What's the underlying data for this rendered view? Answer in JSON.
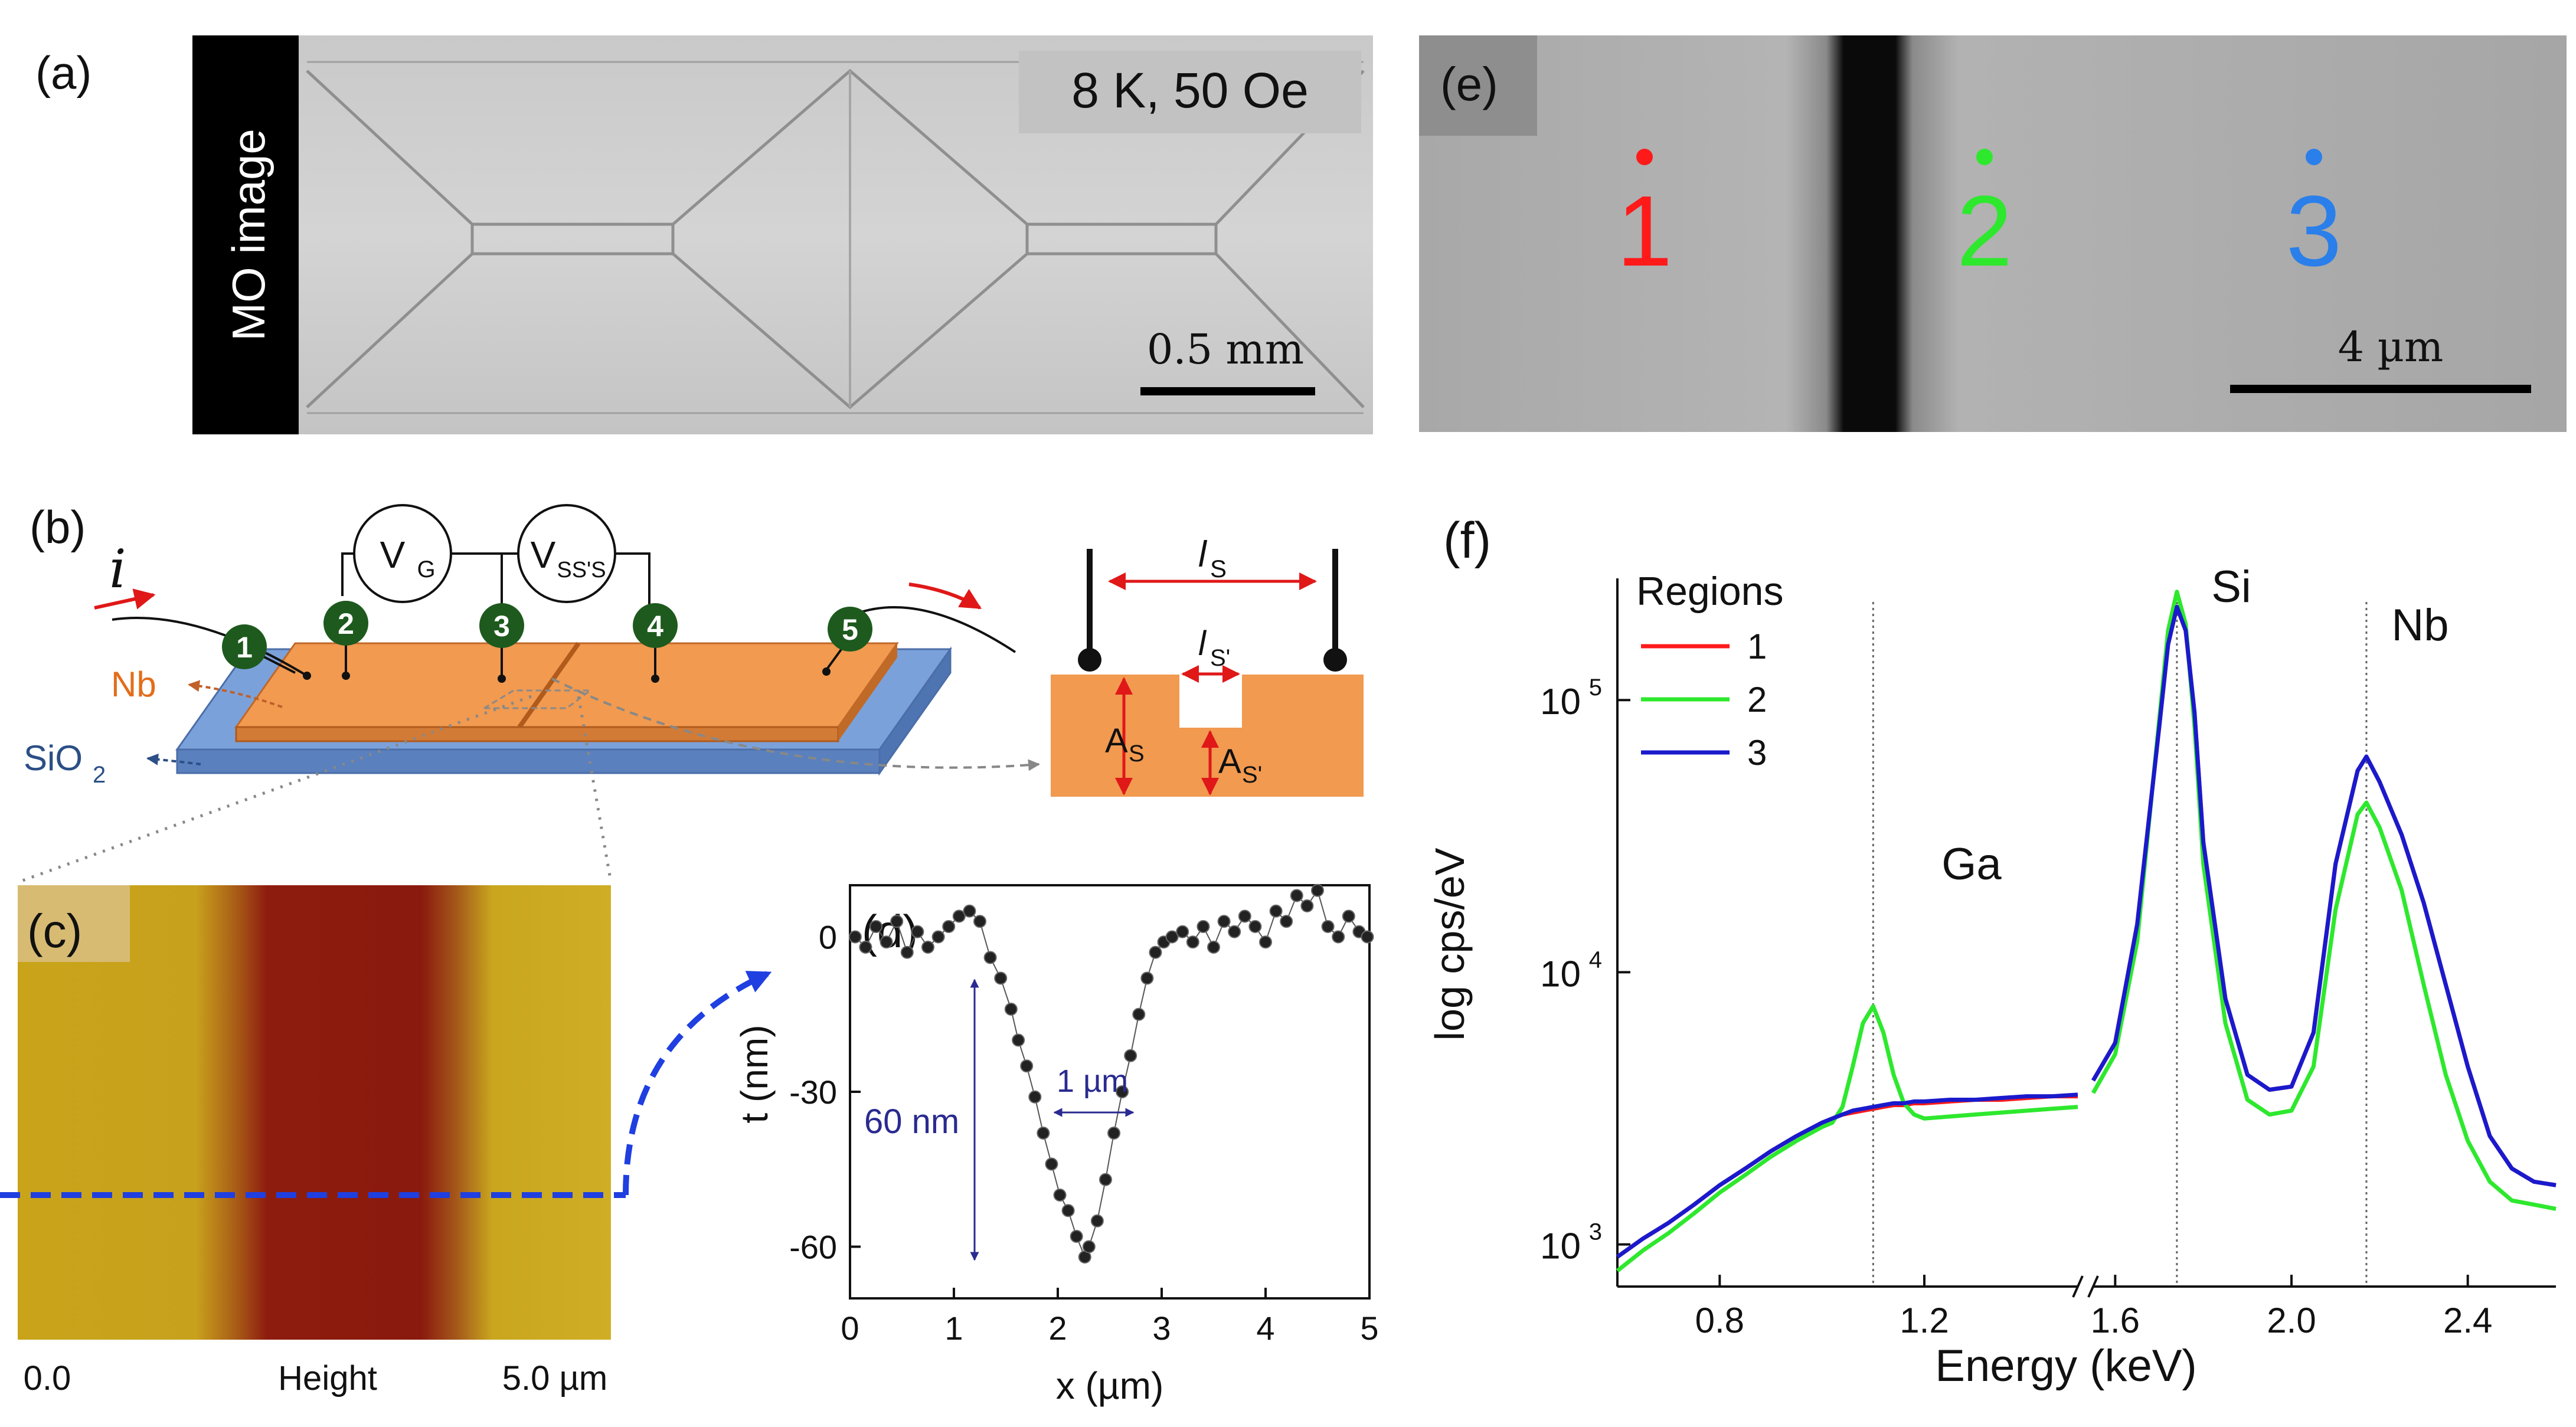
{
  "panels": {
    "a": {
      "label": "(a)",
      "side_label": "MO image",
      "condition": "8 K, 50 Oe",
      "scale_bar": "0.5 mm"
    },
    "b": {
      "label": "(b)",
      "current_symbol": "i",
      "voltmeters": [
        "V",
        "V"
      ],
      "voltmeter_subscripts": [
        "G",
        "SS'S"
      ],
      "contacts": [
        "1",
        "2",
        "3",
        "4",
        "5"
      ],
      "nb_label": "Nb",
      "sio2_label": "SiO",
      "sio2_subscript": "2",
      "ls_label": "l",
      "ls_subscript": "S",
      "ls_prime_label": "l",
      "ls_prime_subscript": "S'",
      "as_label": "A",
      "as_subscript": "S",
      "as_prime_label": "A",
      "as_prime_subscript": "S'"
    },
    "c": {
      "label": "(c)",
      "axis_min": "0.0",
      "axis_title": "Height",
      "axis_max": "5.0 µm"
    },
    "d": {
      "label": "(d)",
      "depth_annotation": "60 nm",
      "width_annotation": "1 µm"
    },
    "e": {
      "label": "(e)",
      "regions": [
        "1",
        "2",
        "3"
      ],
      "scale_bar": "4 µm"
    },
    "f": {
      "label": "(f)",
      "legend_title": "Regions",
      "legend_entries": [
        "1",
        "2",
        "3"
      ],
      "peak_labels": [
        "Ga",
        "Si",
        "Nb"
      ]
    }
  },
  "colors": {
    "region1": "#ff1a1a",
    "region2": "#2ee82e",
    "region3": "#1a1acc",
    "region3_marker": "#2a7fea",
    "nb_orange": "#f19a50",
    "substrate_blue": "#6e94cf",
    "contact_green": "#1e5a1e",
    "afm_yellow": "#c8a71e",
    "afm_red": "#8c1a0e",
    "dashed_blue": "#1f3fe0"
  },
  "chart_data": [
    {
      "id": "d",
      "type": "scatter",
      "title": "",
      "xlabel": "x (µm)",
      "ylabel": "t (nm)",
      "xlim": [
        0,
        5
      ],
      "ylim": [
        -70,
        10
      ],
      "xticks": [
        0,
        1,
        2,
        3,
        4,
        5
      ],
      "yticks": [
        0,
        -30,
        -60
      ],
      "series": [
        {
          "name": "profile",
          "x": [
            0.05,
            0.15,
            0.25,
            0.35,
            0.45,
            0.55,
            0.65,
            0.75,
            0.85,
            0.95,
            1.05,
            1.15,
            1.25,
            1.35,
            1.45,
            1.55,
            1.62,
            1.7,
            1.78,
            1.86,
            1.94,
            2.02,
            2.1,
            2.18,
            2.26,
            2.3,
            2.38,
            2.46,
            2.54,
            2.62,
            2.7,
            2.78,
            2.86,
            2.94,
            3.02,
            3.1,
            3.2,
            3.3,
            3.4,
            3.5,
            3.6,
            3.7,
            3.8,
            3.9,
            4.0,
            4.1,
            4.2,
            4.3,
            4.4,
            4.5,
            4.6,
            4.7,
            4.8,
            4.9,
            4.98
          ],
          "y": [
            0,
            -2,
            2,
            -1,
            3,
            -3,
            1,
            -2,
            0,
            2,
            4,
            5,
            3,
            -4,
            -8,
            -14,
            -20,
            -25,
            -31,
            -38,
            -44,
            -50,
            -53,
            -58,
            -62,
            -60,
            -55,
            -47,
            -38,
            -30,
            -23,
            -15,
            -8,
            -3,
            -1,
            0,
            1,
            -1,
            2,
            -2,
            3,
            1,
            4,
            2,
            -1,
            5,
            3,
            8,
            6,
            9,
            2,
            0,
            4,
            1,
            0
          ]
        }
      ]
    },
    {
      "id": "f",
      "type": "line",
      "title": "",
      "xlabel": "Energy (keV)",
      "ylabel": "log cps/eV",
      "yscale": "log",
      "ylim": [
        700,
        280000
      ],
      "broken_axis": true,
      "xticks": [
        0.8,
        1.2,
        1.6,
        2.0,
        2.4
      ],
      "ytick_labels": [
        "10^3",
        "10^4",
        "10^5"
      ],
      "segments": [
        {
          "xlim": [
            0.6,
            1.5
          ],
          "x": [
            0.6,
            0.65,
            0.7,
            0.75,
            0.8,
            0.85,
            0.9,
            0.95,
            1.0,
            1.02,
            1.04,
            1.06,
            1.08,
            1.1,
            1.12,
            1.14,
            1.16,
            1.18,
            1.2,
            1.25,
            1.3,
            1.35,
            1.4,
            1.45,
            1.5
          ],
          "series": [
            {
              "name": "1",
              "values": [
                900,
                1050,
                1200,
                1400,
                1650,
                1900,
                2200,
                2500,
                2800,
                2900,
                3000,
                3050,
                3100,
                3150,
                3200,
                3250,
                3250,
                3300,
                3300,
                3350,
                3400,
                3400,
                3450,
                3500,
                3500
              ]
            },
            {
              "name": "2",
              "values": [
                800,
                950,
                1100,
                1300,
                1550,
                1800,
                2100,
                2400,
                2700,
                2800,
                3200,
                4500,
                6500,
                7500,
                6000,
                4200,
                3300,
                3000,
                2900,
                2950,
                3000,
                3050,
                3100,
                3150,
                3200
              ]
            },
            {
              "name": "3",
              "values": [
                900,
                1050,
                1200,
                1400,
                1650,
                1900,
                2200,
                2500,
                2800,
                2900,
                3000,
                3100,
                3150,
                3200,
                3250,
                3300,
                3300,
                3350,
                3350,
                3400,
                3400,
                3450,
                3500,
                3500,
                3550
              ]
            }
          ]
        },
        {
          "xlim": [
            1.55,
            2.6
          ],
          "x": [
            1.55,
            1.6,
            1.65,
            1.7,
            1.72,
            1.74,
            1.76,
            1.78,
            1.8,
            1.85,
            1.9,
            1.95,
            2.0,
            2.05,
            2.1,
            2.15,
            2.17,
            2.2,
            2.25,
            2.3,
            2.35,
            2.4,
            2.45,
            2.5,
            2.55,
            2.6
          ],
          "series": [
            {
              "name": "1",
              "values": [
                4000,
                5500,
                15000,
                80000,
                160000,
                220000,
                180000,
                90000,
                30000,
                8000,
                4200,
                3700,
                3800,
                6000,
                25000,
                55000,
                62000,
                50000,
                32000,
                18000,
                9000,
                4500,
                2500,
                1900,
                1700,
                1650
              ]
            },
            {
              "name": "2",
              "values": [
                3600,
                5000,
                13000,
                85000,
                180000,
                250000,
                190000,
                80000,
                25000,
                6500,
                3400,
                3000,
                3100,
                4500,
                17000,
                38000,
                42000,
                34000,
                20000,
                9000,
                4200,
                2400,
                1700,
                1450,
                1400,
                1350
              ]
            },
            {
              "name": "3",
              "values": [
                4000,
                5500,
                15000,
                80000,
                160000,
                220000,
                180000,
                90000,
                30000,
                8000,
                4200,
                3700,
                3800,
                6000,
                25000,
                55000,
                62000,
                50000,
                32000,
                18000,
                9000,
                4500,
                2500,
                1900,
                1700,
                1650
              ]
            }
          ]
        }
      ]
    }
  ]
}
